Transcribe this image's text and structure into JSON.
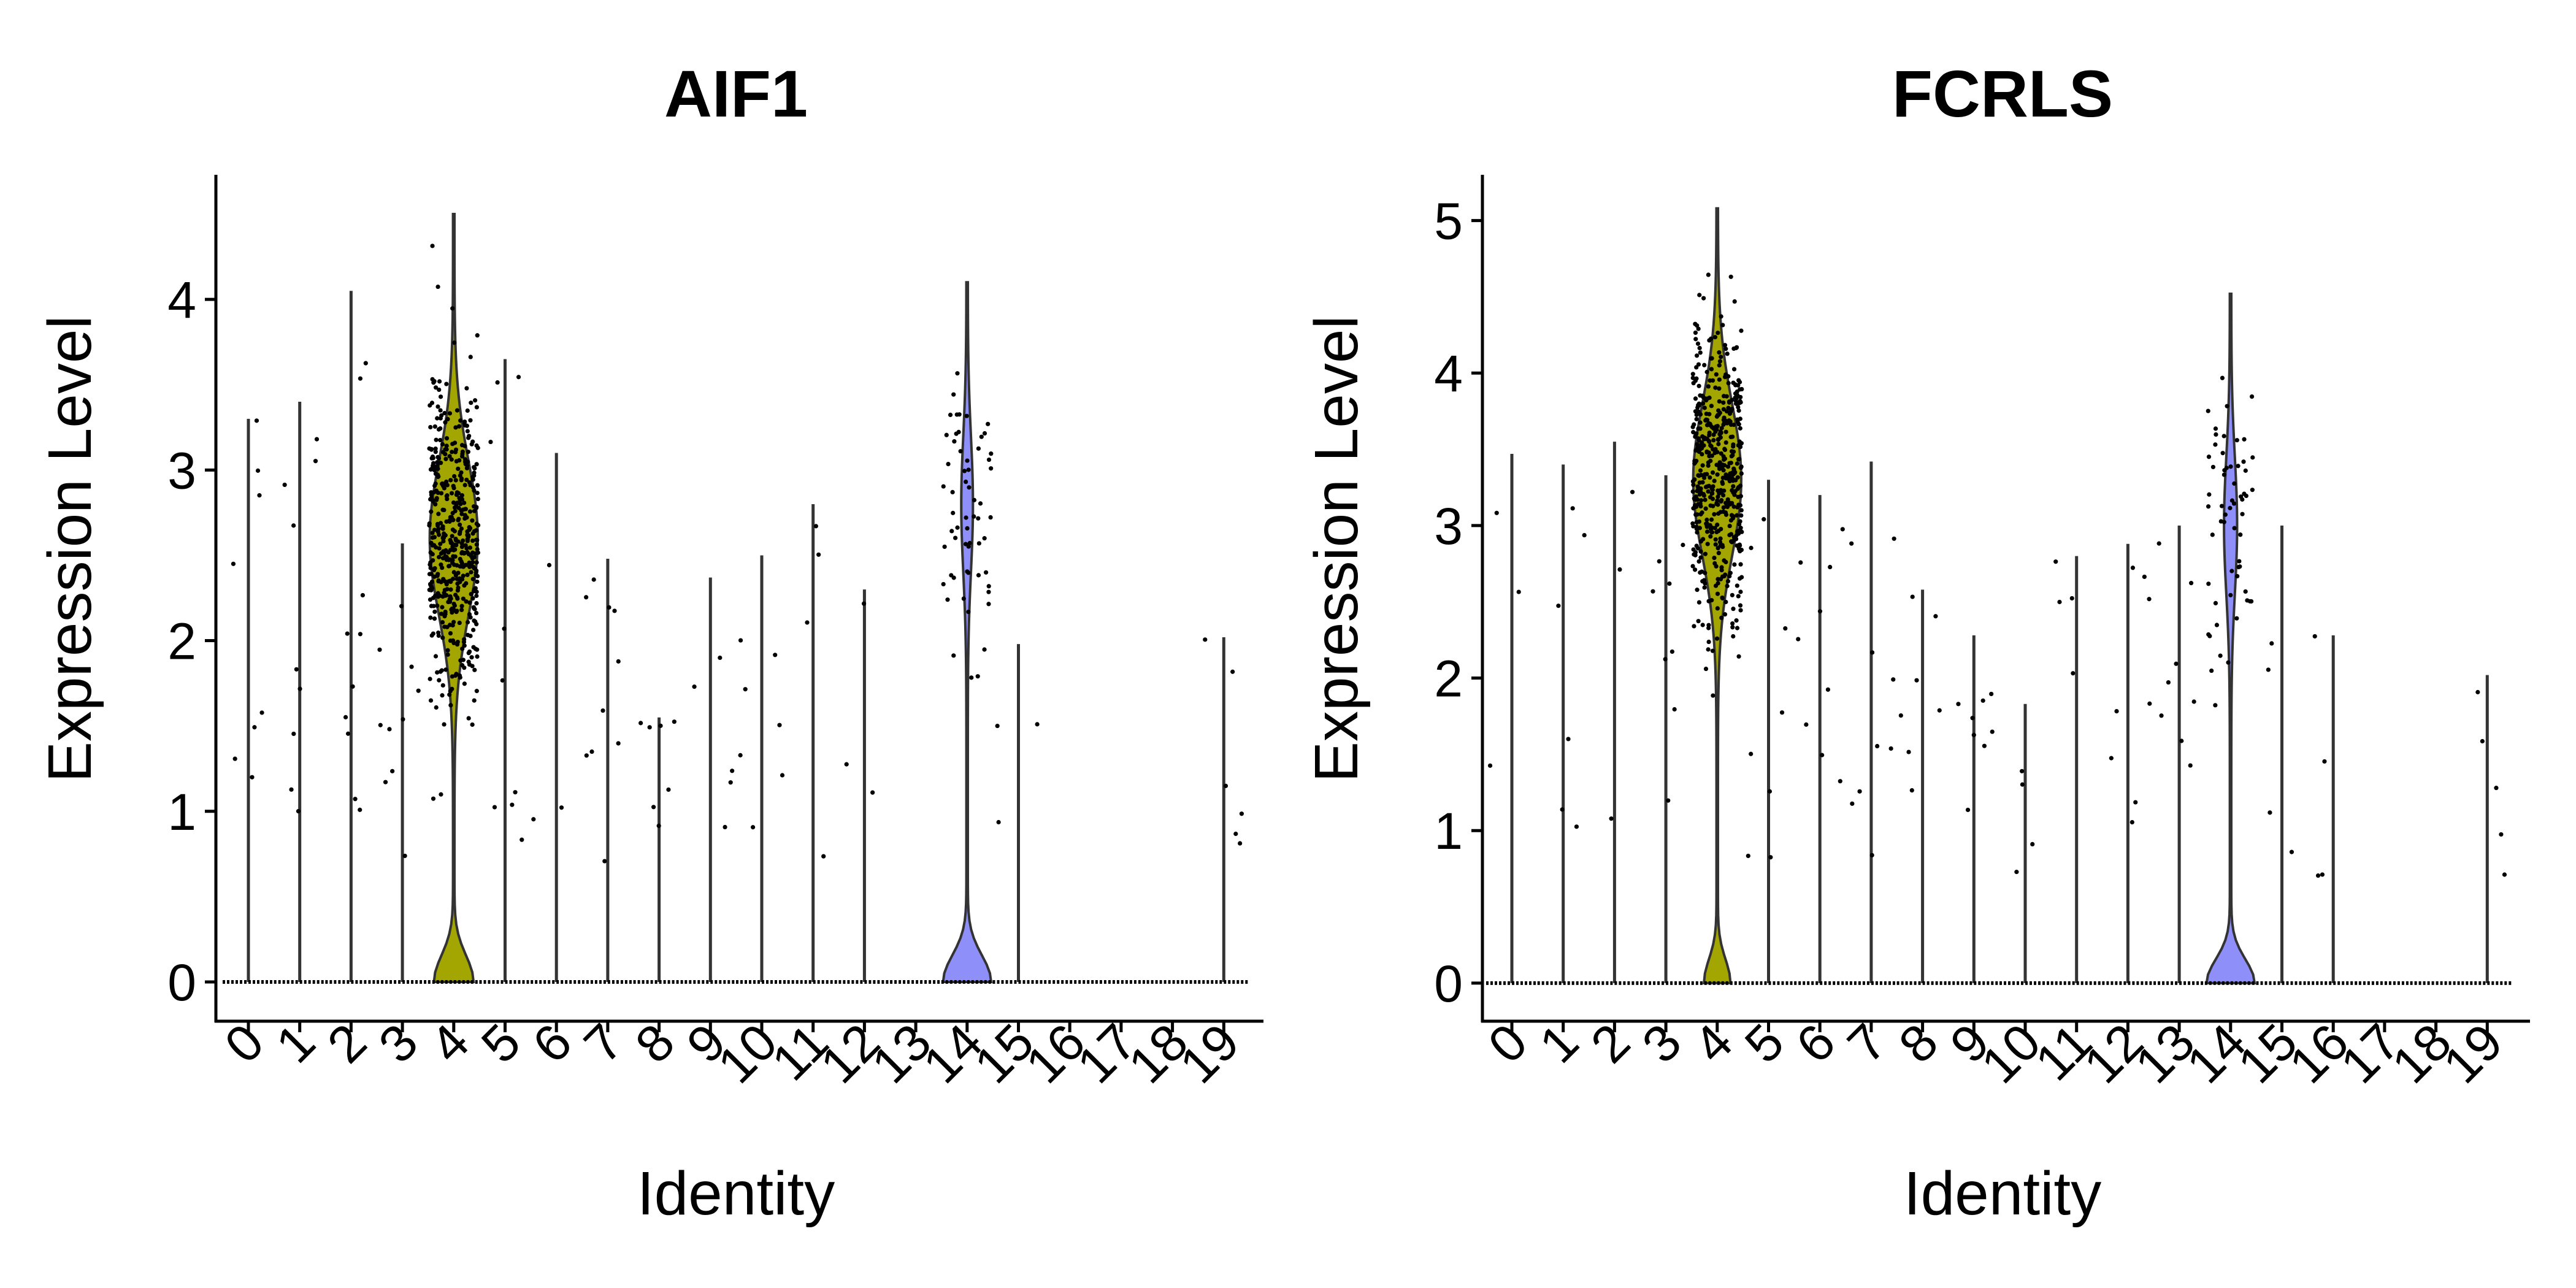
{
  "colors": {
    "axis": "#000000",
    "violin_outline": "#333333",
    "point": "#000000",
    "cluster_4": "#a3a500",
    "cluster_14": "#8f8ffa"
  },
  "chart_data": [
    {
      "type": "violin",
      "title": "AIF1",
      "xlabel": "Identity",
      "ylabel": "Expression Level",
      "categories": [
        "0",
        "1",
        "2",
        "3",
        "4",
        "5",
        "6",
        "7",
        "8",
        "9",
        "10",
        "11",
        "12",
        "13",
        "14",
        "15",
        "16",
        "17",
        "18",
        "19"
      ],
      "ylim": [
        -0.23,
        4.73
      ],
      "yticks": [
        0,
        1,
        2,
        3,
        4
      ],
      "max_expression": [
        3.3,
        3.4,
        4.05,
        2.57,
        4.5,
        3.65,
        3.1,
        2.48,
        1.55,
        2.37,
        2.5,
        2.8,
        2.3,
        0,
        4.1,
        1.98,
        0,
        0,
        0,
        2.02
      ],
      "filled_violins": [
        {
          "category": "4",
          "color": "#a3a500",
          "zero_fraction": 0.45,
          "mode": 2.6,
          "spread": 0.45
        },
        {
          "category": "14",
          "color": "#8f8ffa",
          "zero_fraction": 0.82,
          "mode": 2.8,
          "spread": 0.4
        }
      ]
    },
    {
      "type": "violin",
      "title": "FCRLS",
      "xlabel": "Identity",
      "ylabel": "Expression Level",
      "categories": [
        "0",
        "1",
        "2",
        "3",
        "4",
        "5",
        "6",
        "7",
        "8",
        "9",
        "10",
        "11",
        "12",
        "13",
        "14",
        "15",
        "16",
        "17",
        "18",
        "19"
      ],
      "ylim": [
        -0.25,
        5.3
      ],
      "yticks": [
        0,
        1,
        2,
        3,
        4,
        5
      ],
      "max_expression": [
        3.47,
        3.4,
        3.55,
        3.33,
        5.08,
        3.3,
        3.2,
        3.42,
        2.58,
        2.28,
        1.83,
        2.8,
        2.88,
        3.0,
        4.52,
        3.0,
        2.28,
        0,
        0,
        2.02
      ],
      "filled_violins": [
        {
          "category": "4",
          "color": "#a3a500",
          "zero_fraction": 0.35,
          "mode": 3.3,
          "spread": 0.5
        },
        {
          "category": "14",
          "color": "#8f8ffa",
          "zero_fraction": 0.8,
          "mode": 3.0,
          "spread": 0.45
        }
      ]
    }
  ]
}
